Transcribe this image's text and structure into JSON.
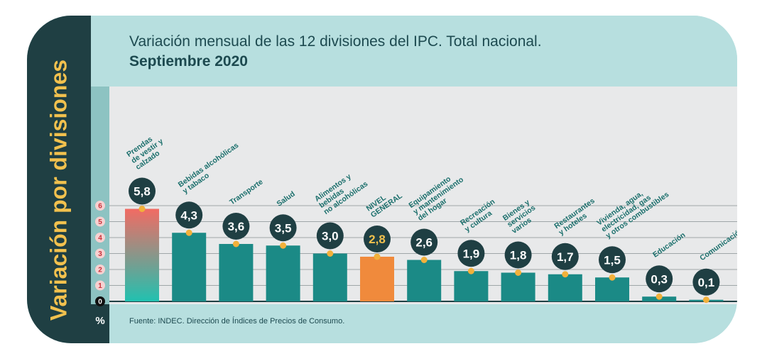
{
  "sidebar_title": "Variación por divisiones",
  "title_line1": "Variación mensual de las 12 divisiones del IPC. Total nacional.",
  "title_line2": "Septiembre 2020",
  "unit": "%",
  "source": "Fuente: INDEC. Dirección de Índices de Precios de Consumo.",
  "colors": {
    "bar": "#1b8a86",
    "bar_light": "#27b3a8",
    "highlight_top": "#f26b63",
    "highlight_bottom": "#21c1b0",
    "general": "#f08a3c",
    "bubble": "#1f3f43",
    "dot": "#f2b13b",
    "tick": "#c8333b"
  },
  "chart_data": {
    "type": "bar",
    "title": "Variación mensual de las 12 divisiones del IPC. Total nacional. Septiembre 2020",
    "ylabel": "%",
    "ylim": [
      0,
      6
    ],
    "yticks": [
      0,
      1,
      2,
      3,
      4,
      5,
      6
    ],
    "grid": true,
    "categories": [
      "Prendas de vestir y calzado",
      "Bebidas alcohólicas y tabaco",
      "Transporte",
      "Salud",
      "Alimentos y bebidas no alcohólicas",
      "NIVEL GENERAL",
      "Equipamiento y mantenimiento del hogar",
      "Recreación y cultura",
      "Bienes y servicios varios",
      "Restaurantes y hoteles",
      "Vivienda, agua, electricidad, gas y otros combustibles",
      "Educación",
      "Comunicación"
    ],
    "category_lines": [
      [
        "Prendas",
        "de vestir y",
        "calzado"
      ],
      [
        "Bebidas alcohólicas",
        "y tabaco"
      ],
      [
        "Transporte"
      ],
      [
        "Salud"
      ],
      [
        "Alimentos y",
        "bebidas",
        "no alcohólicas"
      ],
      [
        "NIVEL",
        "GENERAL"
      ],
      [
        "Equipamiento",
        "y mantenimiento",
        "del hogar"
      ],
      [
        "Recreación",
        "y cultura"
      ],
      [
        "Bienes y",
        "servicios",
        "varios"
      ],
      [
        "Restaurantes",
        "y hoteles"
      ],
      [
        "Vivienda, agua,",
        "electricidad, gas",
        "y otros combustibles"
      ],
      [
        "Educación"
      ],
      [
        "Comunicación"
      ]
    ],
    "values": [
      5.8,
      4.3,
      3.6,
      3.5,
      3.0,
      2.8,
      2.6,
      1.9,
      1.8,
      1.7,
      1.5,
      0.3,
      0.1
    ],
    "value_labels": [
      "5,8",
      "4,3",
      "3,6",
      "3,5",
      "3,0",
      "2,8",
      "2,6",
      "1,9",
      "1,8",
      "1,7",
      "1,5",
      "0,3",
      "0,1"
    ],
    "icons": [
      "shirt-icon",
      "bottle-icon",
      "car-icon",
      "medical-kit-icon",
      "roast-chicken-icon",
      "shopping-basket-icon",
      "washing-machine-icon",
      "guitar-icon",
      "scissors-icon",
      "cutlery-icon",
      "lightbulb-icon",
      "book-icon",
      "phone-icon"
    ]
  }
}
